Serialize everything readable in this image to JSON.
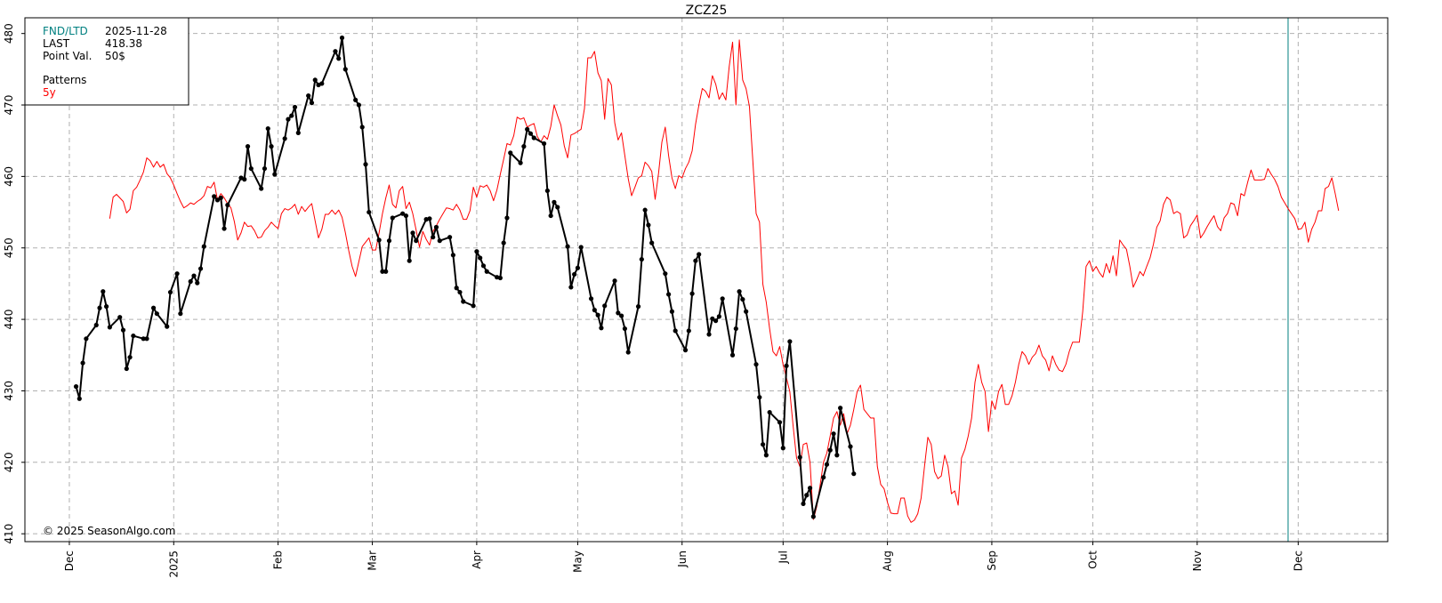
{
  "chart_data": {
    "type": "line",
    "title": "ZCZ25",
    "xlim": [
      -13.2,
      391.6
    ],
    "ylim": [
      408.9,
      482.2
    ],
    "xticks": [
      {
        "value": 0,
        "label": "Dec"
      },
      {
        "value": 31,
        "label": "2025"
      },
      {
        "value": 62,
        "label": "Feb"
      },
      {
        "value": 90,
        "label": "Mar"
      },
      {
        "value": 121,
        "label": "Apr"
      },
      {
        "value": 151,
        "label": "May"
      },
      {
        "value": 182,
        "label": "Jun"
      },
      {
        "value": 212,
        "label": "Jul"
      },
      {
        "value": 243,
        "label": "Aug"
      },
      {
        "value": 274,
        "label": "Sep"
      },
      {
        "value": 304,
        "label": "Oct"
      },
      {
        "value": 335,
        "label": "Nov"
      },
      {
        "value": 365,
        "label": "Dec"
      }
    ],
    "yticks": [
      410,
      420,
      430,
      440,
      450,
      460,
      470,
      480
    ],
    "grid": true,
    "vline": {
      "x": 362,
      "color": "#008080"
    },
    "info": {
      "rows": [
        {
          "label": "FND/LTD",
          "value": "2025-11-28",
          "color": "#008080"
        },
        {
          "label": "LAST",
          "value": 418.38,
          "color": "#000000"
        },
        {
          "label": "Point Val.",
          "value": "50$",
          "color": "#000000"
        }
      ],
      "legend_title": "Patterns"
    },
    "copyright": "© 2025 SeasonAlgo.com",
    "series": [
      {
        "name": "5y",
        "color": "#ff0000",
        "markers": false,
        "width": 1,
        "x": [
          12,
          13,
          14,
          15,
          16,
          17,
          18,
          19,
          20,
          21,
          22,
          23,
          24,
          25,
          26,
          27,
          28,
          29,
          30,
          31,
          32,
          33,
          34,
          35,
          36,
          37,
          38,
          39,
          40,
          41,
          42,
          43,
          44,
          45,
          46,
          47,
          48,
          49,
          50,
          51,
          52,
          53,
          54,
          55,
          56,
          57,
          58,
          59,
          60,
          61,
          62,
          63,
          64,
          65,
          66,
          67,
          68,
          69,
          70,
          71,
          72,
          73,
          74,
          75,
          76,
          77,
          78,
          79,
          80,
          81,
          82,
          83,
          84,
          85,
          86,
          87,
          88,
          89,
          90,
          91,
          92,
          93,
          94,
          95,
          96,
          97,
          98,
          99,
          100,
          101,
          102,
          103,
          104,
          105,
          106,
          107,
          108,
          109,
          110,
          111,
          112,
          113,
          114,
          115,
          116,
          117,
          118,
          119,
          120,
          121,
          122,
          123,
          124,
          125,
          126,
          127,
          128,
          129,
          130,
          131,
          132,
          133,
          134,
          135,
          136,
          137,
          138,
          139,
          140,
          141,
          142,
          143,
          144,
          145,
          146,
          147,
          148,
          149,
          150,
          151,
          152,
          153,
          154,
          155,
          156,
          157,
          158,
          159,
          160,
          161,
          162,
          163,
          164,
          165,
          166,
          167,
          168,
          169,
          170,
          171,
          172,
          173,
          174,
          175,
          176,
          177,
          178,
          179,
          180,
          181,
          182,
          183,
          184,
          185,
          186,
          187,
          188,
          189,
          190,
          191,
          192,
          193,
          194,
          195,
          196,
          197,
          198,
          199,
          200,
          201,
          202,
          203,
          204,
          205,
          206,
          207,
          208,
          209,
          210,
          211,
          212,
          213,
          214,
          215,
          216,
          217,
          218,
          219,
          220,
          221,
          222,
          223,
          224,
          225,
          226,
          227,
          228,
          229,
          230,
          231,
          232,
          233,
          234,
          235,
          236,
          237,
          238,
          239,
          240,
          241,
          242,
          243,
          244,
          245,
          246,
          247,
          248,
          249,
          250,
          251,
          252,
          253,
          254,
          255,
          256,
          257,
          258,
          259,
          260,
          261,
          262,
          263,
          264,
          265,
          266,
          267,
          268,
          269,
          270,
          271,
          272,
          273,
          274,
          275,
          276,
          277,
          278,
          279,
          280,
          281,
          282,
          283,
          284,
          285,
          286,
          287,
          288,
          289,
          290,
          291,
          292,
          293,
          294,
          295,
          296,
          297,
          298,
          299,
          300,
          301,
          302,
          303,
          304,
          305,
          306,
          307,
          308,
          309,
          310,
          311,
          312,
          313,
          314,
          315,
          316,
          317,
          318,
          319,
          320,
          321,
          322,
          323,
          324,
          325,
          326,
          327,
          328,
          329,
          330,
          331,
          332,
          333,
          334,
          335,
          336,
          337,
          338,
          339,
          340,
          341,
          342,
          343,
          344,
          345,
          346,
          347,
          348,
          349,
          350,
          351,
          352,
          353,
          354,
          355,
          356,
          357,
          358,
          359,
          360,
          361,
          362,
          363,
          364,
          365,
          366,
          367,
          368,
          369,
          370,
          371,
          372,
          373,
          374,
          375,
          376,
          377
        ],
        "values": [
          454.1,
          457.1,
          457.5,
          457.0,
          456.5,
          454.9,
          455.4,
          458.0,
          458.5,
          459.5,
          460.6,
          462.6,
          462.2,
          461.3,
          462.1,
          461.3,
          461.7,
          460.4,
          459.8,
          458.8,
          457.6,
          456.5,
          455.6,
          455.9,
          456.3,
          456.1,
          456.5,
          456.8,
          457.3,
          458.6,
          458.4,
          459.2,
          456.7,
          457.6,
          457.0,
          456.2,
          455.6,
          453.7,
          451.1,
          452.1,
          453.6,
          453.0,
          453.1,
          452.4,
          451.4,
          451.5,
          452.4,
          452.9,
          453.6,
          453.1,
          452.7,
          454.8,
          455.5,
          455.3,
          455.6,
          456.1,
          454.7,
          455.8,
          455.1,
          455.7,
          456.2,
          453.8,
          451.4,
          452.6,
          454.7,
          454.7,
          455.3,
          454.7,
          455.3,
          454.3,
          452.1,
          449.6,
          447.4,
          446.0,
          448.1,
          450.2,
          450.8,
          451.4,
          449.7,
          449.7,
          452.1,
          454.8,
          457.0,
          458.8,
          456.1,
          455.6,
          458.0,
          458.6,
          455.5,
          456.4,
          454.8,
          452.5,
          450.1,
          452.3,
          451.2,
          450.4,
          452.3,
          453.1,
          454.0,
          454.8,
          455.6,
          455.5,
          455.3,
          456.1,
          455.3,
          454.0,
          454.0,
          455.2,
          458.5,
          457.1,
          458.7,
          458.5,
          458.8,
          458.0,
          456.6,
          458.1,
          460.3,
          462.4,
          464.6,
          464.4,
          465.7,
          468.3,
          468.0,
          468.2,
          466.9,
          467.2,
          467.4,
          465.6,
          464.8,
          465.7,
          465.2,
          467.0,
          470.0,
          468.5,
          467.2,
          464.3,
          462.6,
          465.8,
          466.0,
          466.3,
          466.6,
          469.5,
          476.6,
          476.6,
          477.5,
          474.5,
          473.4,
          468.0,
          473.7,
          472.8,
          467.5,
          465.1,
          466.1,
          462.9,
          459.7,
          457.3,
          458.5,
          459.8,
          460.1,
          462.0,
          461.5,
          460.7,
          456.8,
          460.4,
          464.8,
          466.9,
          462.9,
          459.8,
          458.3,
          460.1,
          459.8,
          461.1,
          462.0,
          463.6,
          467.3,
          470.0,
          472.3,
          471.9,
          471.0,
          474.1,
          472.9,
          470.8,
          471.7,
          470.7,
          475.4,
          478.8,
          470.0,
          479.1,
          473.5,
          472.3,
          469.8,
          462.3,
          454.8,
          453.6,
          444.9,
          442.4,
          438.7,
          435.5,
          434.9,
          436.2,
          433.7,
          431.8,
          429.9,
          425.0,
          420.6,
          419.4,
          422.5,
          422.7,
          420.0,
          412.0,
          413.8,
          416.8,
          420.0,
          421.3,
          423.7,
          426.2,
          427.1,
          425.2,
          426.8,
          424.0,
          425.2,
          427.4,
          429.9,
          430.8,
          427.4,
          426.8,
          426.2,
          426.2,
          419.4,
          416.9,
          416.3,
          414.4,
          412.9,
          412.8,
          412.8,
          415.0,
          415.0,
          412.5,
          411.6,
          411.9,
          412.8,
          415.0,
          419.4,
          423.5,
          422.5,
          418.7,
          417.7,
          418.1,
          421.0,
          419.4,
          415.6,
          416.0,
          414.0,
          420.6,
          421.8,
          423.7,
          426.2,
          431.2,
          433.7,
          431.2,
          429.9,
          424.3,
          428.6,
          427.4,
          429.9,
          430.9,
          428.1,
          428.1,
          429.3,
          431.2,
          433.7,
          435.5,
          434.9,
          433.7,
          434.7,
          435.2,
          436.4,
          434.9,
          434.3,
          432.8,
          434.9,
          433.7,
          432.9,
          432.7,
          433.7,
          435.5,
          436.8,
          436.8,
          436.8,
          441.1,
          447.4,
          448.2,
          446.7,
          447.4,
          446.5,
          445.9,
          447.8,
          446.5,
          448.9,
          446.1,
          451.1,
          450.4,
          449.8,
          447.4,
          444.5,
          445.5,
          446.7,
          446.1,
          447.4,
          448.6,
          450.5,
          452.9,
          453.8,
          456.1,
          457.1,
          456.7,
          454.8,
          455.1,
          454.8,
          451.4,
          451.8,
          453.1,
          453.8,
          454.6,
          451.4,
          452.1,
          453.0,
          453.8,
          454.5,
          453.0,
          452.4,
          454.2,
          454.8,
          456.3,
          456.1,
          454.5,
          457.6,
          457.3,
          459.2,
          460.9,
          459.5,
          459.5,
          459.5,
          459.6,
          461.1,
          460.3,
          459.6,
          458.6,
          457.1,
          456.3,
          455.5,
          454.8,
          454.1,
          452.6,
          452.7,
          453.6,
          450.8,
          452.6,
          453.6,
          455.2,
          455.2,
          458.3,
          458.6,
          459.8,
          457.6,
          455.2
        ]
      },
      {
        "color": "#000000",
        "markers": true,
        "width": 2,
        "x": [
          2,
          3,
          4,
          5,
          8,
          9,
          10,
          11,
          12,
          15,
          16,
          17,
          18,
          19,
          22,
          23,
          25,
          26,
          29,
          30,
          32,
          33,
          36,
          37,
          38,
          39,
          40,
          43,
          44,
          45,
          46,
          47,
          51,
          52,
          53,
          54,
          57,
          58,
          59,
          60,
          61,
          64,
          65,
          66,
          67,
          68,
          71,
          72,
          73,
          74,
          75,
          79,
          80,
          81,
          82,
          85,
          86,
          87,
          88,
          89,
          92,
          93,
          94,
          95,
          96,
          99,
          100,
          101,
          102,
          103,
          106,
          107,
          108,
          109,
          110,
          113,
          114,
          115,
          116,
          117,
          120,
          121,
          122,
          123,
          124,
          127,
          128,
          129,
          130,
          131,
          134,
          135,
          136,
          137,
          138,
          141,
          142,
          143,
          144,
          145,
          148,
          149,
          150,
          151,
          152,
          155,
          156,
          157,
          158,
          159,
          162,
          163,
          164,
          165,
          166,
          169,
          170,
          171,
          172,
          173,
          177,
          178,
          179,
          180,
          183,
          184,
          185,
          186,
          187,
          190,
          191,
          192,
          193,
          194,
          197,
          198,
          199,
          200,
          201,
          204,
          205,
          206,
          207,
          208,
          211,
          212,
          213,
          214,
          217,
          218,
          219,
          220,
          221,
          224,
          225,
          226,
          227,
          228,
          229,
          232,
          233
        ],
        "values": [
          430.6,
          428.9,
          433.9,
          437.3,
          439.2,
          441.6,
          443.9,
          441.8,
          438.9,
          440.3,
          438.5,
          433.1,
          434.7,
          437.7,
          437.3,
          437.3,
          441.6,
          440.8,
          439.0,
          443.8,
          446.4,
          440.8,
          445.3,
          446.1,
          445.1,
          447.1,
          450.2,
          457.2,
          456.7,
          457.0,
          452.7,
          456.0,
          459.8,
          459.6,
          464.2,
          461.1,
          458.3,
          461.1,
          466.7,
          464.2,
          460.3,
          465.3,
          468.0,
          468.5,
          469.7,
          466.1,
          471.3,
          470.3,
          473.5,
          472.8,
          473.0,
          477.5,
          476.5,
          479.4,
          475.0,
          470.7,
          470.0,
          466.9,
          461.7,
          455.0,
          451.1,
          446.7,
          446.7,
          451.0,
          454.2,
          454.8,
          454.5,
          448.2,
          452.1,
          451.0,
          454.0,
          454.1,
          451.5,
          452.9,
          451.0,
          451.5,
          449.0,
          444.4,
          443.8,
          442.5,
          441.9,
          449.5,
          448.6,
          447.5,
          446.7,
          445.9,
          445.8,
          450.7,
          454.2,
          463.3,
          461.9,
          464.2,
          466.6,
          466.0,
          465.4,
          464.6,
          458.0,
          454.5,
          456.4,
          455.7,
          450.2,
          444.5,
          446.3,
          447.2,
          450.1,
          442.9,
          441.3,
          440.6,
          438.8,
          441.9,
          445.4,
          440.9,
          440.5,
          438.7,
          435.4,
          441.8,
          448.4,
          455.3,
          453.2,
          450.7,
          446.4,
          443.5,
          441.1,
          438.4,
          435.7,
          438.4,
          443.6,
          448.2,
          449.1,
          437.9,
          440.1,
          439.8,
          440.4,
          442.9,
          435.0,
          438.7,
          443.9,
          442.8,
          441.1,
          433.7,
          429.1,
          422.5,
          421.0,
          427.0,
          425.6,
          422.0,
          433.5,
          436.9,
          420.7,
          414.2,
          415.4,
          416.4,
          412.4,
          417.9,
          419.7,
          421.7,
          424.0,
          421.0,
          427.6,
          422.2,
          418.4
        ]
      }
    ]
  }
}
